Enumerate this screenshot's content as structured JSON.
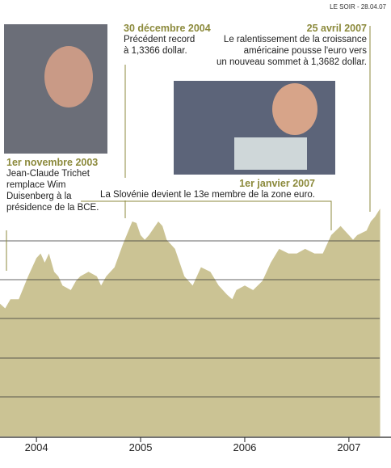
{
  "header": {
    "source": "LE SOIR - 28.04.07"
  },
  "chart_data": {
    "type": "area",
    "color": "#cbc394",
    "x": [
      2003.65,
      2003.7,
      2003.75,
      2003.83,
      2003.92,
      2004.0,
      2004.04,
      2004.08,
      2004.12,
      2004.17,
      2004.21,
      2004.25,
      2004.33,
      2004.38,
      2004.42,
      2004.5,
      2004.58,
      2004.62,
      2004.67,
      2004.75,
      2004.83,
      2004.92,
      2004.96,
      2005.0,
      2005.04,
      2005.08,
      2005.17,
      2005.21,
      2005.25,
      2005.33,
      2005.42,
      2005.5,
      2005.58,
      2005.67,
      2005.75,
      2005.83,
      2005.88,
      2005.92,
      2006.0,
      2006.08,
      2006.17,
      2006.25,
      2006.33,
      2006.42,
      2006.5,
      2006.58,
      2006.67,
      2006.75,
      2006.83,
      2006.92,
      2006.96,
      2007.0,
      2007.04,
      2007.08,
      2007.17,
      2007.21,
      2007.25,
      2007.3
    ],
    "values": [
      1.16,
      1.15,
      1.17,
      1.17,
      1.22,
      1.26,
      1.27,
      1.25,
      1.27,
      1.23,
      1.22,
      1.2,
      1.19,
      1.21,
      1.22,
      1.23,
      1.22,
      1.2,
      1.22,
      1.24,
      1.29,
      1.34,
      1.3366,
      1.31,
      1.3,
      1.31,
      1.34,
      1.33,
      1.3,
      1.28,
      1.22,
      1.2,
      1.24,
      1.23,
      1.2,
      1.18,
      1.17,
      1.19,
      1.2,
      1.19,
      1.21,
      1.25,
      1.28,
      1.27,
      1.27,
      1.28,
      1.27,
      1.27,
      1.31,
      1.33,
      1.32,
      1.31,
      1.3,
      1.31,
      1.32,
      1.34,
      1.35,
      1.3682
    ],
    "xlim": [
      2003.65,
      2007.35
    ],
    "xticks": [
      2004,
      2005,
      2006,
      2007
    ],
    "ylim": [
      0.87,
      1.4
    ],
    "annotations": [
      {
        "date": "1er novembre 2003",
        "lines": [
          "Jean-Claude Trichet",
          "remplace Wim",
          "Duisenberg à la",
          "présidence de la BCE."
        ]
      },
      {
        "date": "30 décembre 2004",
        "lines": [
          "Précédent record",
          "à 1,3366 dollar."
        ]
      },
      {
        "date": "25 avril 2007",
        "lines": [
          "Le ralentissement de la croissance",
          "américaine pousse l'euro vers",
          "un nouveau sommet à 1,3682 dollar."
        ]
      },
      {
        "date": "1er janvier 2007",
        "lines": [
          "La Slovénie devient le 13e membre de la zone euro."
        ]
      }
    ]
  }
}
